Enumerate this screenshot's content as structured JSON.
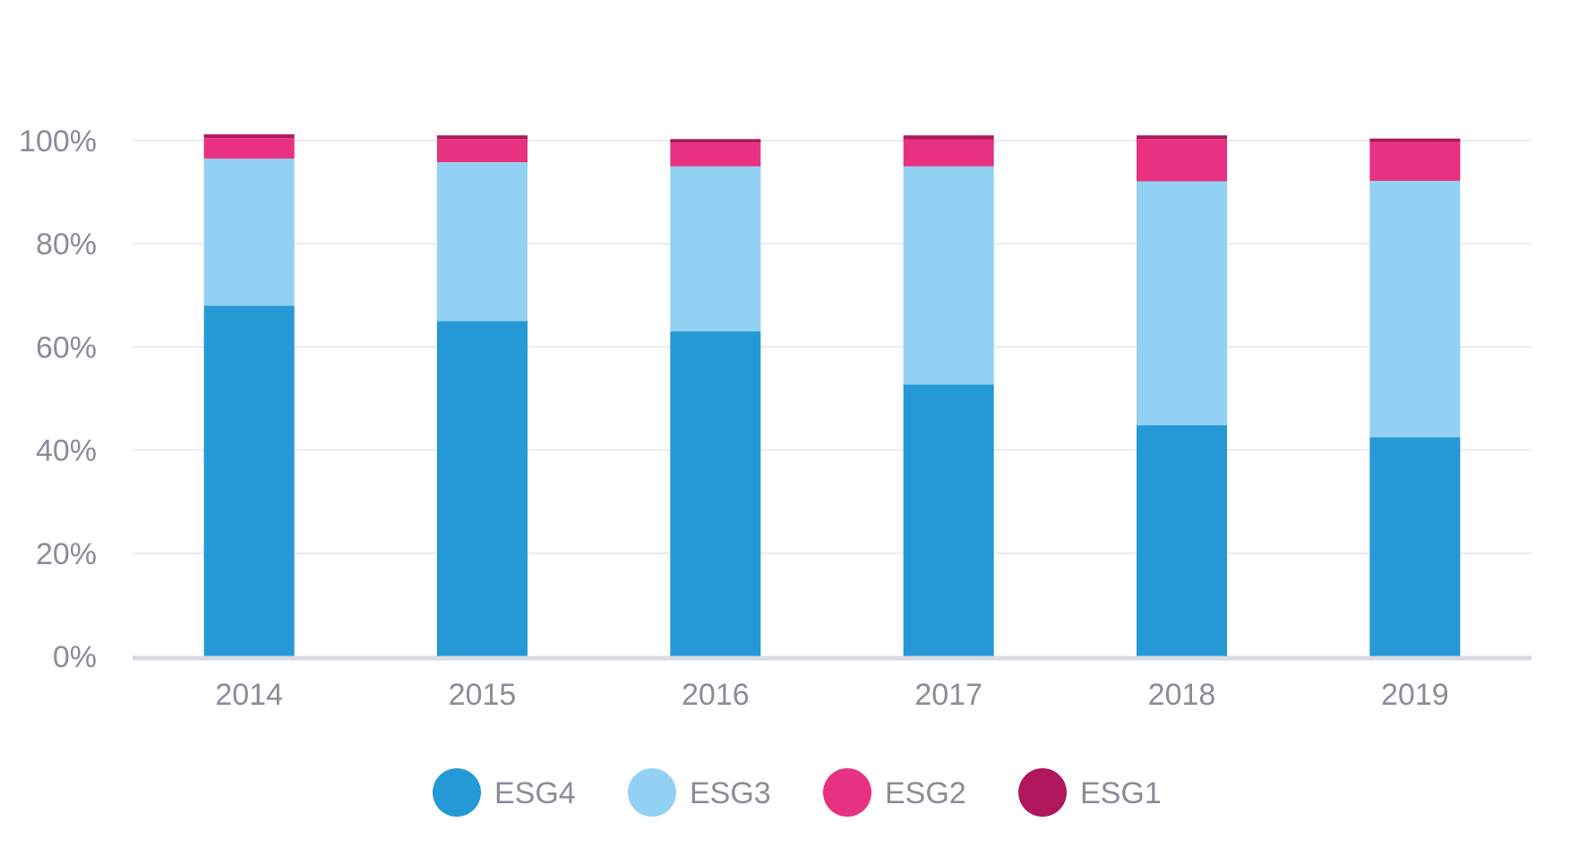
{
  "chart_data": {
    "type": "bar",
    "stacked": true,
    "categories": [
      "2014",
      "2015",
      "2016",
      "2017",
      "2018",
      "2019"
    ],
    "series": [
      {
        "name": "ESG4",
        "color": "#2499D6",
        "values": [
          68.0,
          65.0,
          63.0,
          52.7,
          44.8,
          42.5
        ]
      },
      {
        "name": "ESG3",
        "color": "#92D1F4",
        "values": [
          28.5,
          30.8,
          32.0,
          42.3,
          47.3,
          49.7
        ]
      },
      {
        "name": "ESG2",
        "color": "#E83181",
        "values": [
          4.0,
          4.5,
          4.6,
          5.2,
          8.2,
          7.5
        ]
      },
      {
        "name": "ESG1",
        "color": "#B0175C",
        "values": [
          0.7,
          0.7,
          0.7,
          0.8,
          0.7,
          0.7
        ]
      }
    ],
    "y_ticks": [
      "0%",
      "20%",
      "40%",
      "60%",
      "80%",
      "100%"
    ],
    "ylim": [
      0,
      100
    ],
    "grid": true,
    "legend_position": "bottom",
    "title": "",
    "xlabel": "",
    "ylabel": ""
  }
}
